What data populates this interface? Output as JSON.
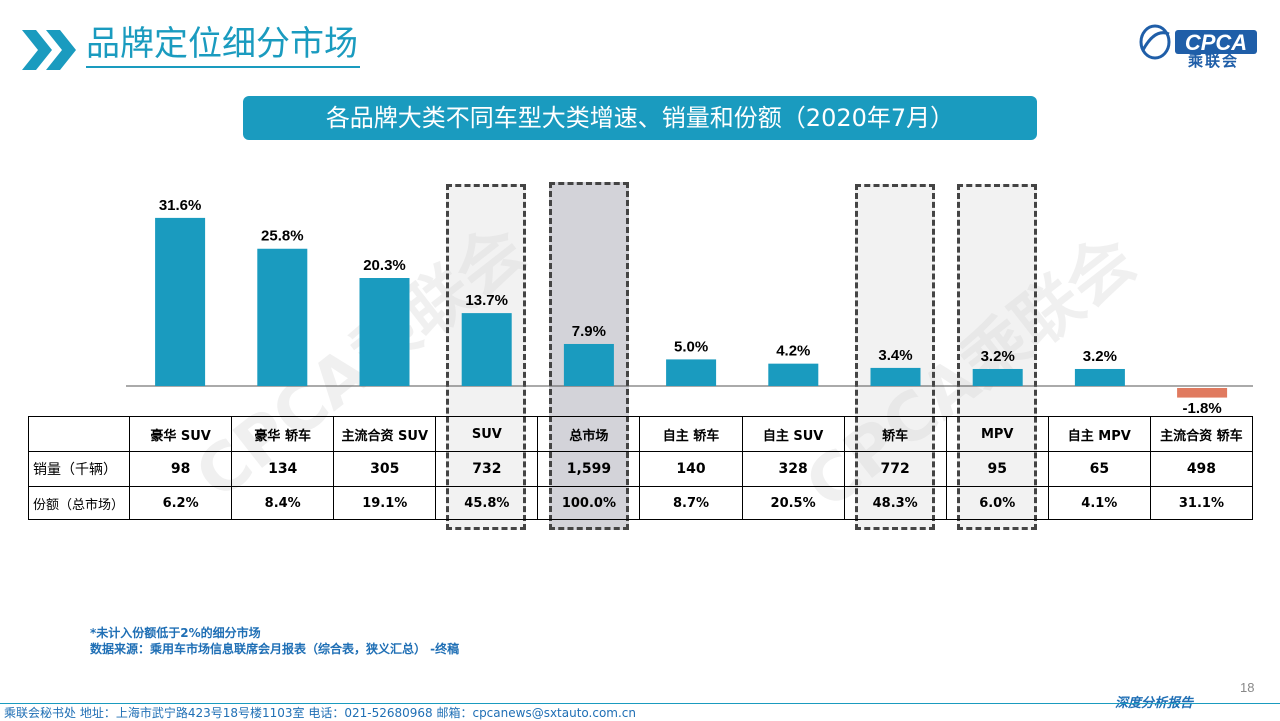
{
  "header": {
    "title": "品牌定位细分市场",
    "banner": "各品牌大类不同车型大类增速、销量和份额（2020年7月）",
    "logo_en": "CPCA",
    "logo_cn": "乘联会",
    "watermark": "CPCA乘联会"
  },
  "colors": {
    "accent": "#1a9bbf",
    "negative": "#e07a5f",
    "text_blue": "#1f6fb5"
  },
  "chart_data": {
    "type": "bar",
    "categories": [
      "豪华 SUV",
      "豪华 轿车",
      "主流合资 SUV",
      "SUV",
      "总市场",
      "自主 轿车",
      "自主 SUV",
      "轿车",
      "MPV",
      "自主 MPV",
      "主流合资 轿车"
    ],
    "values": [
      31.6,
      25.8,
      20.3,
      13.7,
      7.9,
      5.0,
      4.2,
      3.4,
      3.2,
      3.2,
      -1.8
    ],
    "value_labels": [
      "31.6%",
      "25.8%",
      "20.3%",
      "13.7%",
      "7.9%",
      "5.0%",
      "4.2%",
      "3.4%",
      "3.2%",
      "3.2%",
      "-1.8%"
    ],
    "highlighted": [
      "SUV",
      "总市场",
      "轿车",
      "MPV"
    ]
  },
  "table": {
    "rows": [
      {
        "label": "销量（千辆）",
        "values": [
          "98",
          "134",
          "305",
          "732",
          "1,599",
          "140",
          "328",
          "772",
          "95",
          "65",
          "498"
        ]
      },
      {
        "label": "份额（总市场）",
        "values": [
          "6.2%",
          "8.4%",
          "19.1%",
          "45.8%",
          "100.0%",
          "8.7%",
          "20.5%",
          "48.3%",
          "6.0%",
          "4.1%",
          "31.1%"
        ]
      }
    ]
  },
  "footnotes": {
    "note": "*未计入份额低于2%的细分市场",
    "source": "数据来源：乘用车市场信息联席会月报表（综合表，狭义汇总） -终稿"
  },
  "footer": {
    "address": "乘联会秘书处   地址：上海市武宁路423号18号楼1103室  电话：021-52680968   邮箱：cpcanews@sxtauto.com.cn",
    "right": "深度分析报告",
    "page": "18"
  }
}
